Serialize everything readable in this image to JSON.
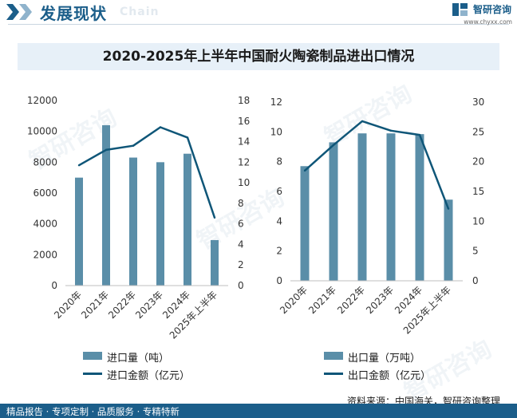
{
  "header": {
    "title": "发展现状",
    "title_en": "Chain",
    "brand_name": "智研咨询",
    "brand_url": "www.chyxx.com"
  },
  "main_title": "2020-2025年上半年中国耐火陶瓷制品进出口情况",
  "colors": {
    "bar": "#5a8ea8",
    "line": "#0f5678",
    "title_bg": "#e7f0f8",
    "brand": "#1b5e8a"
  },
  "watermark": "智研咨询",
  "chart_data": [
    {
      "type": "bar",
      "categories": [
        "2020年",
        "2021年",
        "2022年",
        "2023年",
        "2024年",
        "2025年上半年"
      ],
      "series": [
        {
          "name": "进口量（吨）",
          "type": "bar",
          "axis": "left",
          "values": [
            7000,
            10400,
            8300,
            8000,
            8550,
            2950
          ]
        },
        {
          "name": "进口金额（亿元）",
          "type": "line",
          "axis": "right",
          "values": [
            11.7,
            13.2,
            13.6,
            15.4,
            14.4,
            6.6
          ]
        }
      ],
      "left_axis": {
        "ylim": [
          0,
          12000
        ],
        "ticks": [
          0,
          2000,
          4000,
          6000,
          8000,
          10000,
          12000
        ]
      },
      "right_axis": {
        "ylim": [
          0,
          18
        ],
        "ticks": [
          0,
          2,
          4,
          6,
          8,
          10,
          12,
          14,
          16,
          18
        ]
      },
      "grid": false,
      "legend_position": "bottom"
    },
    {
      "type": "bar",
      "categories": [
        "2020年",
        "2021年",
        "2022年",
        "2023年",
        "2024年",
        "2025年上半年"
      ],
      "series": [
        {
          "name": "出口量（万吨）",
          "type": "bar",
          "axis": "left",
          "values": [
            7.7,
            9.3,
            9.9,
            9.9,
            9.85,
            5.45
          ]
        },
        {
          "name": "出口金额（亿元）",
          "type": "line",
          "axis": "right",
          "values": [
            18.5,
            22.8,
            26.8,
            25.2,
            24.5,
            12.1
          ]
        }
      ],
      "left_axis": {
        "ylim": [
          0,
          12
        ],
        "ticks": [
          0,
          2,
          4,
          6,
          8,
          10,
          12
        ]
      },
      "right_axis": {
        "ylim": [
          0,
          30
        ],
        "ticks": [
          0,
          5,
          10,
          15,
          20,
          25,
          30
        ]
      },
      "grid": false,
      "legend_position": "bottom"
    }
  ],
  "source": "资料来源：中国海关，智研咨询整理",
  "footer": "精品报告 · 专项定制 · 品质服务 · 专精特新"
}
